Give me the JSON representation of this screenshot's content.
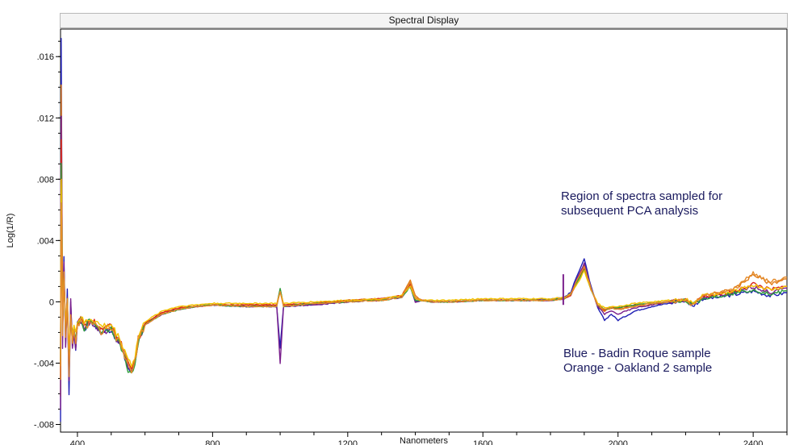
{
  "window": {
    "title": "Spectral Display"
  },
  "chart_data": {
    "type": "line",
    "title": "Spectral Display",
    "xlabel": "Nanometers",
    "ylabel": "Log(1/R)",
    "xlim": [
      350,
      2500
    ],
    "ylim": [
      -0.0085,
      0.0178
    ],
    "x_ticks": [
      400,
      800,
      1200,
      1600,
      2000,
      2400
    ],
    "x_tick_labels": [
      "400",
      "800",
      "1200",
      "1600",
      "2000",
      "2400"
    ],
    "y_ticks": [
      0.016,
      0.012,
      0.008,
      0.004,
      0,
      -0.004,
      -0.008
    ],
    "y_tick_labels": [
      ".016",
      ".012",
      ".008",
      ".004",
      "0",
      "-.004",
      "-.008"
    ],
    "grid": false,
    "annotations": [
      {
        "id": "region_note",
        "lines": [
          "Region of spectra sampled for",
          "subsequent PCA analysis"
        ]
      },
      {
        "id": "legend_note",
        "lines": [
          "Blue - Badin Roque sample",
          "Orange - Oakland 2 sample"
        ]
      }
    ],
    "series": [
      {
        "color": "#1f1fb4",
        "scale": 1.15,
        "offset": -0.0001,
        "spike": 0.017,
        "x": [
          350,
          352,
          356,
          360,
          365,
          370,
          375,
          380,
          385,
          390,
          395,
          400,
          410,
          420,
          430,
          440,
          450,
          470,
          500,
          530,
          550,
          560,
          570,
          580,
          600,
          650,
          700,
          750,
          800,
          900,
          990,
          1000,
          1010,
          1100,
          1200,
          1300,
          1360,
          1385,
          1400,
          1420,
          1450,
          1500,
          1600,
          1700,
          1800,
          1840,
          1860,
          1880,
          1900,
          1920,
          1940,
          1960,
          1980,
          2000,
          2050,
          2100,
          2150,
          2200,
          2220,
          2250,
          2300,
          2350,
          2400,
          2450,
          2500
        ],
        "y": [
          -0.008,
          0.017,
          -0.002,
          0.003,
          -0.003,
          0.001,
          -0.006,
          0.0,
          -0.003,
          -0.002,
          -0.003,
          -0.0015,
          -0.0012,
          -0.0018,
          -0.0015,
          -0.0012,
          -0.0015,
          -0.002,
          -0.0018,
          -0.003,
          -0.0043,
          -0.0046,
          -0.004,
          -0.0025,
          -0.0015,
          -0.0008,
          -0.0005,
          -0.0003,
          -0.0002,
          -0.0003,
          -0.0003,
          -0.003,
          -0.0003,
          -0.0002,
          0.0,
          0.0001,
          0.0003,
          0.001,
          0.0,
          0.0001,
          0.0,
          0.0,
          0.0001,
          0.0001,
          0.0002,
          0.0003,
          0.0006,
          0.0018,
          0.0028,
          0.001,
          -0.0004,
          -0.0012,
          -0.0008,
          -0.0012,
          -0.0006,
          -0.0003,
          -0.0001,
          0.0001,
          -0.0003,
          0.0002,
          0.0003,
          0.0005,
          0.0007,
          0.0004,
          0.0006
        ]
      },
      {
        "color": "#e07b16",
        "scale": 1.0,
        "offset": 0.0001,
        "spike": 0.014,
        "x": [
          350,
          352,
          356,
          360,
          365,
          370,
          375,
          380,
          385,
          390,
          395,
          400,
          410,
          420,
          430,
          440,
          450,
          470,
          500,
          530,
          550,
          560,
          570,
          580,
          600,
          650,
          700,
          750,
          800,
          900,
          990,
          1000,
          1010,
          1100,
          1200,
          1300,
          1360,
          1385,
          1400,
          1420,
          1450,
          1500,
          1600,
          1700,
          1800,
          1840,
          1860,
          1880,
          1900,
          1920,
          1940,
          1960,
          1980,
          2000,
          2050,
          2100,
          2150,
          2200,
          2220,
          2250,
          2300,
          2350,
          2400,
          2450,
          2500
        ],
        "y": [
          -0.006,
          0.014,
          0.0,
          0.002,
          -0.002,
          0.0,
          -0.004,
          -0.001,
          -0.002,
          -0.002,
          -0.0025,
          -0.0015,
          -0.001,
          -0.0015,
          -0.0013,
          -0.0012,
          -0.0013,
          -0.0018,
          -0.0016,
          -0.0028,
          -0.004,
          -0.0044,
          -0.0038,
          -0.0024,
          -0.0014,
          -0.0007,
          -0.0004,
          -0.0003,
          -0.0002,
          -0.0002,
          -0.0002,
          0.0008,
          -0.0002,
          -0.0001,
          0.0001,
          0.0002,
          0.0004,
          0.0014,
          0.0004,
          0.0001,
          0.0,
          0.0,
          0.0001,
          0.0001,
          0.0001,
          0.0002,
          0.0005,
          0.0015,
          0.0024,
          0.0009,
          -0.0003,
          -0.0006,
          -0.0004,
          -0.0005,
          -0.0003,
          -0.0002,
          0.0,
          0.0001,
          -0.0002,
          0.0004,
          0.0006,
          0.0009,
          0.0018,
          0.0012,
          0.0015
        ]
      },
      {
        "color": "#7a1f8c",
        "scale": 1.05,
        "offset": -0.0002,
        "spike": 0.012,
        "x": [
          350,
          352,
          356,
          360,
          365,
          370,
          375,
          380,
          385,
          390,
          395,
          400,
          410,
          420,
          430,
          440,
          450,
          470,
          500,
          530,
          550,
          560,
          570,
          580,
          600,
          650,
          700,
          750,
          800,
          900,
          990,
          1000,
          1010,
          1100,
          1200,
          1300,
          1360,
          1385,
          1400,
          1420,
          1450,
          1500,
          1600,
          1700,
          1800,
          1840,
          1860,
          1880,
          1900,
          1920,
          1940,
          1960,
          1980,
          2000,
          2050,
          2100,
          2150,
          2200,
          2220,
          2250,
          2300,
          2350,
          2400,
          2450,
          2500
        ],
        "y": [
          -0.007,
          0.012,
          -0.003,
          0.0025,
          -0.003,
          0.0005,
          -0.005,
          0.0,
          -0.003,
          -0.002,
          -0.003,
          -0.0015,
          -0.0012,
          -0.0017,
          -0.0015,
          -0.0012,
          -0.0015,
          -0.002,
          -0.0018,
          -0.003,
          -0.0042,
          -0.0045,
          -0.004,
          -0.0025,
          -0.0015,
          -0.0008,
          -0.0005,
          -0.0003,
          -0.0002,
          -0.0003,
          -0.0003,
          -0.004,
          -0.0003,
          -0.0002,
          0.0,
          0.0001,
          0.0003,
          0.0011,
          0.0,
          0.0001,
          0.0,
          0.0,
          0.0001,
          0.0001,
          0.0001,
          0.0002,
          0.0005,
          0.0016,
          0.0025,
          0.0009,
          -0.0003,
          -0.0008,
          -0.0006,
          -0.0008,
          -0.0004,
          -0.0002,
          0.0,
          0.0001,
          -0.0002,
          0.0003,
          0.0004,
          0.0006,
          0.001,
          0.0006,
          0.0009
        ]
      },
      {
        "color": "#d9241c",
        "scale": 0.95,
        "offset": 0.0,
        "spike": 0.0105,
        "x": [
          350,
          352,
          356,
          360,
          365,
          370,
          375,
          380,
          385,
          390,
          395,
          400,
          410,
          420,
          430,
          440,
          450,
          470,
          500,
          530,
          550,
          560,
          570,
          580,
          600,
          650,
          700,
          750,
          800,
          900,
          990,
          1000,
          1010,
          1100,
          1200,
          1300,
          1360,
          1385,
          1400,
          1420,
          1450,
          1500,
          1600,
          1700,
          1800,
          1840,
          1860,
          1880,
          1900,
          1920,
          1940,
          1960,
          1980,
          2000,
          2050,
          2100,
          2150,
          2200,
          2220,
          2250,
          2300,
          2350,
          2400,
          2450,
          2500
        ],
        "y": [
          -0.005,
          0.0105,
          -0.001,
          0.002,
          -0.002,
          0.0,
          -0.004,
          -0.001,
          -0.002,
          -0.002,
          -0.0025,
          -0.0015,
          -0.001,
          -0.0015,
          -0.0013,
          -0.0012,
          -0.0013,
          -0.0018,
          -0.0016,
          -0.0028,
          -0.004,
          -0.0044,
          -0.0038,
          -0.0024,
          -0.0014,
          -0.0007,
          -0.0004,
          -0.0003,
          -0.0002,
          -0.0002,
          -0.0002,
          0.0008,
          -0.0002,
          -0.0001,
          0.0001,
          0.0002,
          0.0004,
          0.0012,
          0.0002,
          0.0001,
          0.0,
          0.0,
          0.0001,
          0.0001,
          0.0001,
          0.0002,
          0.0004,
          0.0014,
          0.0022,
          0.0008,
          -0.0002,
          -0.0005,
          -0.0004,
          -0.0004,
          -0.0002,
          -0.0001,
          0.0,
          0.0001,
          -0.0002,
          0.0003,
          0.0005,
          0.0007,
          0.0012,
          0.0008,
          0.001
        ]
      },
      {
        "color": "#2e9e3a",
        "scale": 1.05,
        "offset": -0.0002,
        "spike": 0.009,
        "x": [
          350,
          352,
          356,
          360,
          365,
          370,
          375,
          380,
          385,
          390,
          395,
          400,
          410,
          420,
          430,
          440,
          450,
          470,
          500,
          530,
          550,
          560,
          570,
          580,
          600,
          650,
          700,
          750,
          800,
          900,
          990,
          1000,
          1010,
          1100,
          1200,
          1300,
          1360,
          1385,
          1400,
          1420,
          1450,
          1500,
          1600,
          1700,
          1800,
          1840,
          1860,
          1880,
          1900,
          1920,
          1940,
          1960,
          1980,
          2000,
          2050,
          2100,
          2150,
          2200,
          2220,
          2250,
          2300,
          2350,
          2400,
          2450,
          2500
        ],
        "y": [
          -0.004,
          0.009,
          -0.002,
          0.002,
          -0.002,
          0.0,
          -0.004,
          -0.001,
          -0.002,
          -0.002,
          -0.0025,
          -0.0015,
          -0.0012,
          -0.0017,
          -0.0014,
          -0.0012,
          -0.0014,
          -0.0019,
          -0.0017,
          -0.003,
          -0.0044,
          -0.0048,
          -0.0041,
          -0.0026,
          -0.0015,
          -0.0008,
          -0.0005,
          -0.0003,
          -0.0002,
          -0.0003,
          -0.0003,
          0.0009,
          -0.0003,
          -0.0001,
          0.0,
          0.0001,
          0.0003,
          0.001,
          0.0001,
          0.0001,
          0.0,
          0.0,
          0.0001,
          0.0001,
          0.0001,
          0.0002,
          0.0005,
          0.0013,
          0.0021,
          0.0008,
          -0.0002,
          -0.0005,
          -0.0004,
          -0.0004,
          -0.0002,
          -0.0001,
          0.0,
          0.0001,
          -0.0002,
          0.0002,
          0.0004,
          0.0006,
          0.0008,
          0.0005,
          0.0007
        ]
      },
      {
        "color": "#f2c200",
        "scale": 0.9,
        "offset": 0.0002,
        "spike": 0.008,
        "x": [
          350,
          352,
          356,
          360,
          365,
          370,
          375,
          380,
          385,
          390,
          395,
          400,
          410,
          420,
          430,
          440,
          450,
          470,
          500,
          530,
          550,
          560,
          570,
          580,
          600,
          650,
          700,
          750,
          800,
          900,
          990,
          1000,
          1010,
          1100,
          1200,
          1300,
          1360,
          1385,
          1400,
          1420,
          1450,
          1500,
          1600,
          1700,
          1800,
          1840,
          1860,
          1880,
          1900,
          1920,
          1940,
          1960,
          1980,
          2000,
          2050,
          2100,
          2150,
          2200,
          2220,
          2250,
          2300,
          2350,
          2400,
          2450,
          2500
        ],
        "y": [
          -0.004,
          0.008,
          -0.001,
          0.0015,
          -0.0015,
          0.0,
          -0.003,
          -0.001,
          -0.002,
          -0.0015,
          -0.002,
          -0.0013,
          -0.001,
          -0.0014,
          -0.0012,
          -0.0011,
          -0.0012,
          -0.0016,
          -0.0015,
          -0.0026,
          -0.0037,
          -0.0041,
          -0.0036,
          -0.0023,
          -0.0013,
          -0.0006,
          -0.0003,
          -0.0002,
          -0.0001,
          -0.0001,
          -0.0001,
          0.0006,
          -0.0001,
          0.0,
          0.0001,
          0.0002,
          0.0004,
          0.001,
          0.0002,
          0.0001,
          0.0001,
          0.0001,
          0.0002,
          0.0002,
          0.0002,
          0.0003,
          0.0005,
          0.0012,
          0.002,
          0.0008,
          -0.0001,
          -0.0004,
          -0.0003,
          -0.0003,
          -0.0001,
          0.0,
          0.0001,
          0.0002,
          -0.0001,
          0.0004,
          0.0005,
          0.0007,
          0.0011,
          0.0008,
          0.001
        ]
      },
      {
        "color": "#e48a2a",
        "scale": 1.1,
        "offset": -0.0001,
        "spike": 0.0065,
        "x": [
          350,
          352,
          356,
          360,
          365,
          370,
          375,
          380,
          385,
          390,
          395,
          400,
          410,
          420,
          430,
          440,
          450,
          470,
          500,
          530,
          550,
          560,
          570,
          580,
          600,
          650,
          700,
          750,
          800,
          900,
          990,
          1000,
          1010,
          1100,
          1200,
          1300,
          1360,
          1385,
          1400,
          1420,
          1450,
          1500,
          1600,
          1700,
          1800,
          1840,
          1860,
          1880,
          1900,
          1920,
          1940,
          1960,
          1980,
          2000,
          2050,
          2100,
          2150,
          2200,
          2220,
          2250,
          2300,
          2350,
          2400,
          2450,
          2500
        ],
        "y": [
          -0.005,
          0.0065,
          -0.002,
          0.002,
          -0.0025,
          0.0,
          -0.005,
          -0.001,
          -0.0025,
          -0.002,
          -0.0028,
          -0.0016,
          -0.0012,
          -0.0017,
          -0.0015,
          -0.0013,
          -0.0015,
          -0.002,
          -0.0018,
          -0.0029,
          -0.0042,
          -0.0046,
          -0.004,
          -0.0025,
          -0.0015,
          -0.0008,
          -0.0005,
          -0.0003,
          -0.0002,
          -0.0003,
          -0.0003,
          0.0007,
          -0.0003,
          -0.0001,
          0.0,
          0.0001,
          0.0003,
          0.0013,
          0.0003,
          0.0001,
          0.0,
          0.0,
          0.0001,
          0.0001,
          0.0001,
          0.0002,
          0.0005,
          0.0015,
          0.0023,
          0.0009,
          -0.0002,
          -0.0005,
          -0.0004,
          -0.0005,
          -0.0003,
          -0.0001,
          0.0,
          0.0001,
          -0.0002,
          0.0004,
          0.0006,
          0.0009,
          0.0019,
          0.0013,
          0.0016
        ]
      }
    ]
  }
}
